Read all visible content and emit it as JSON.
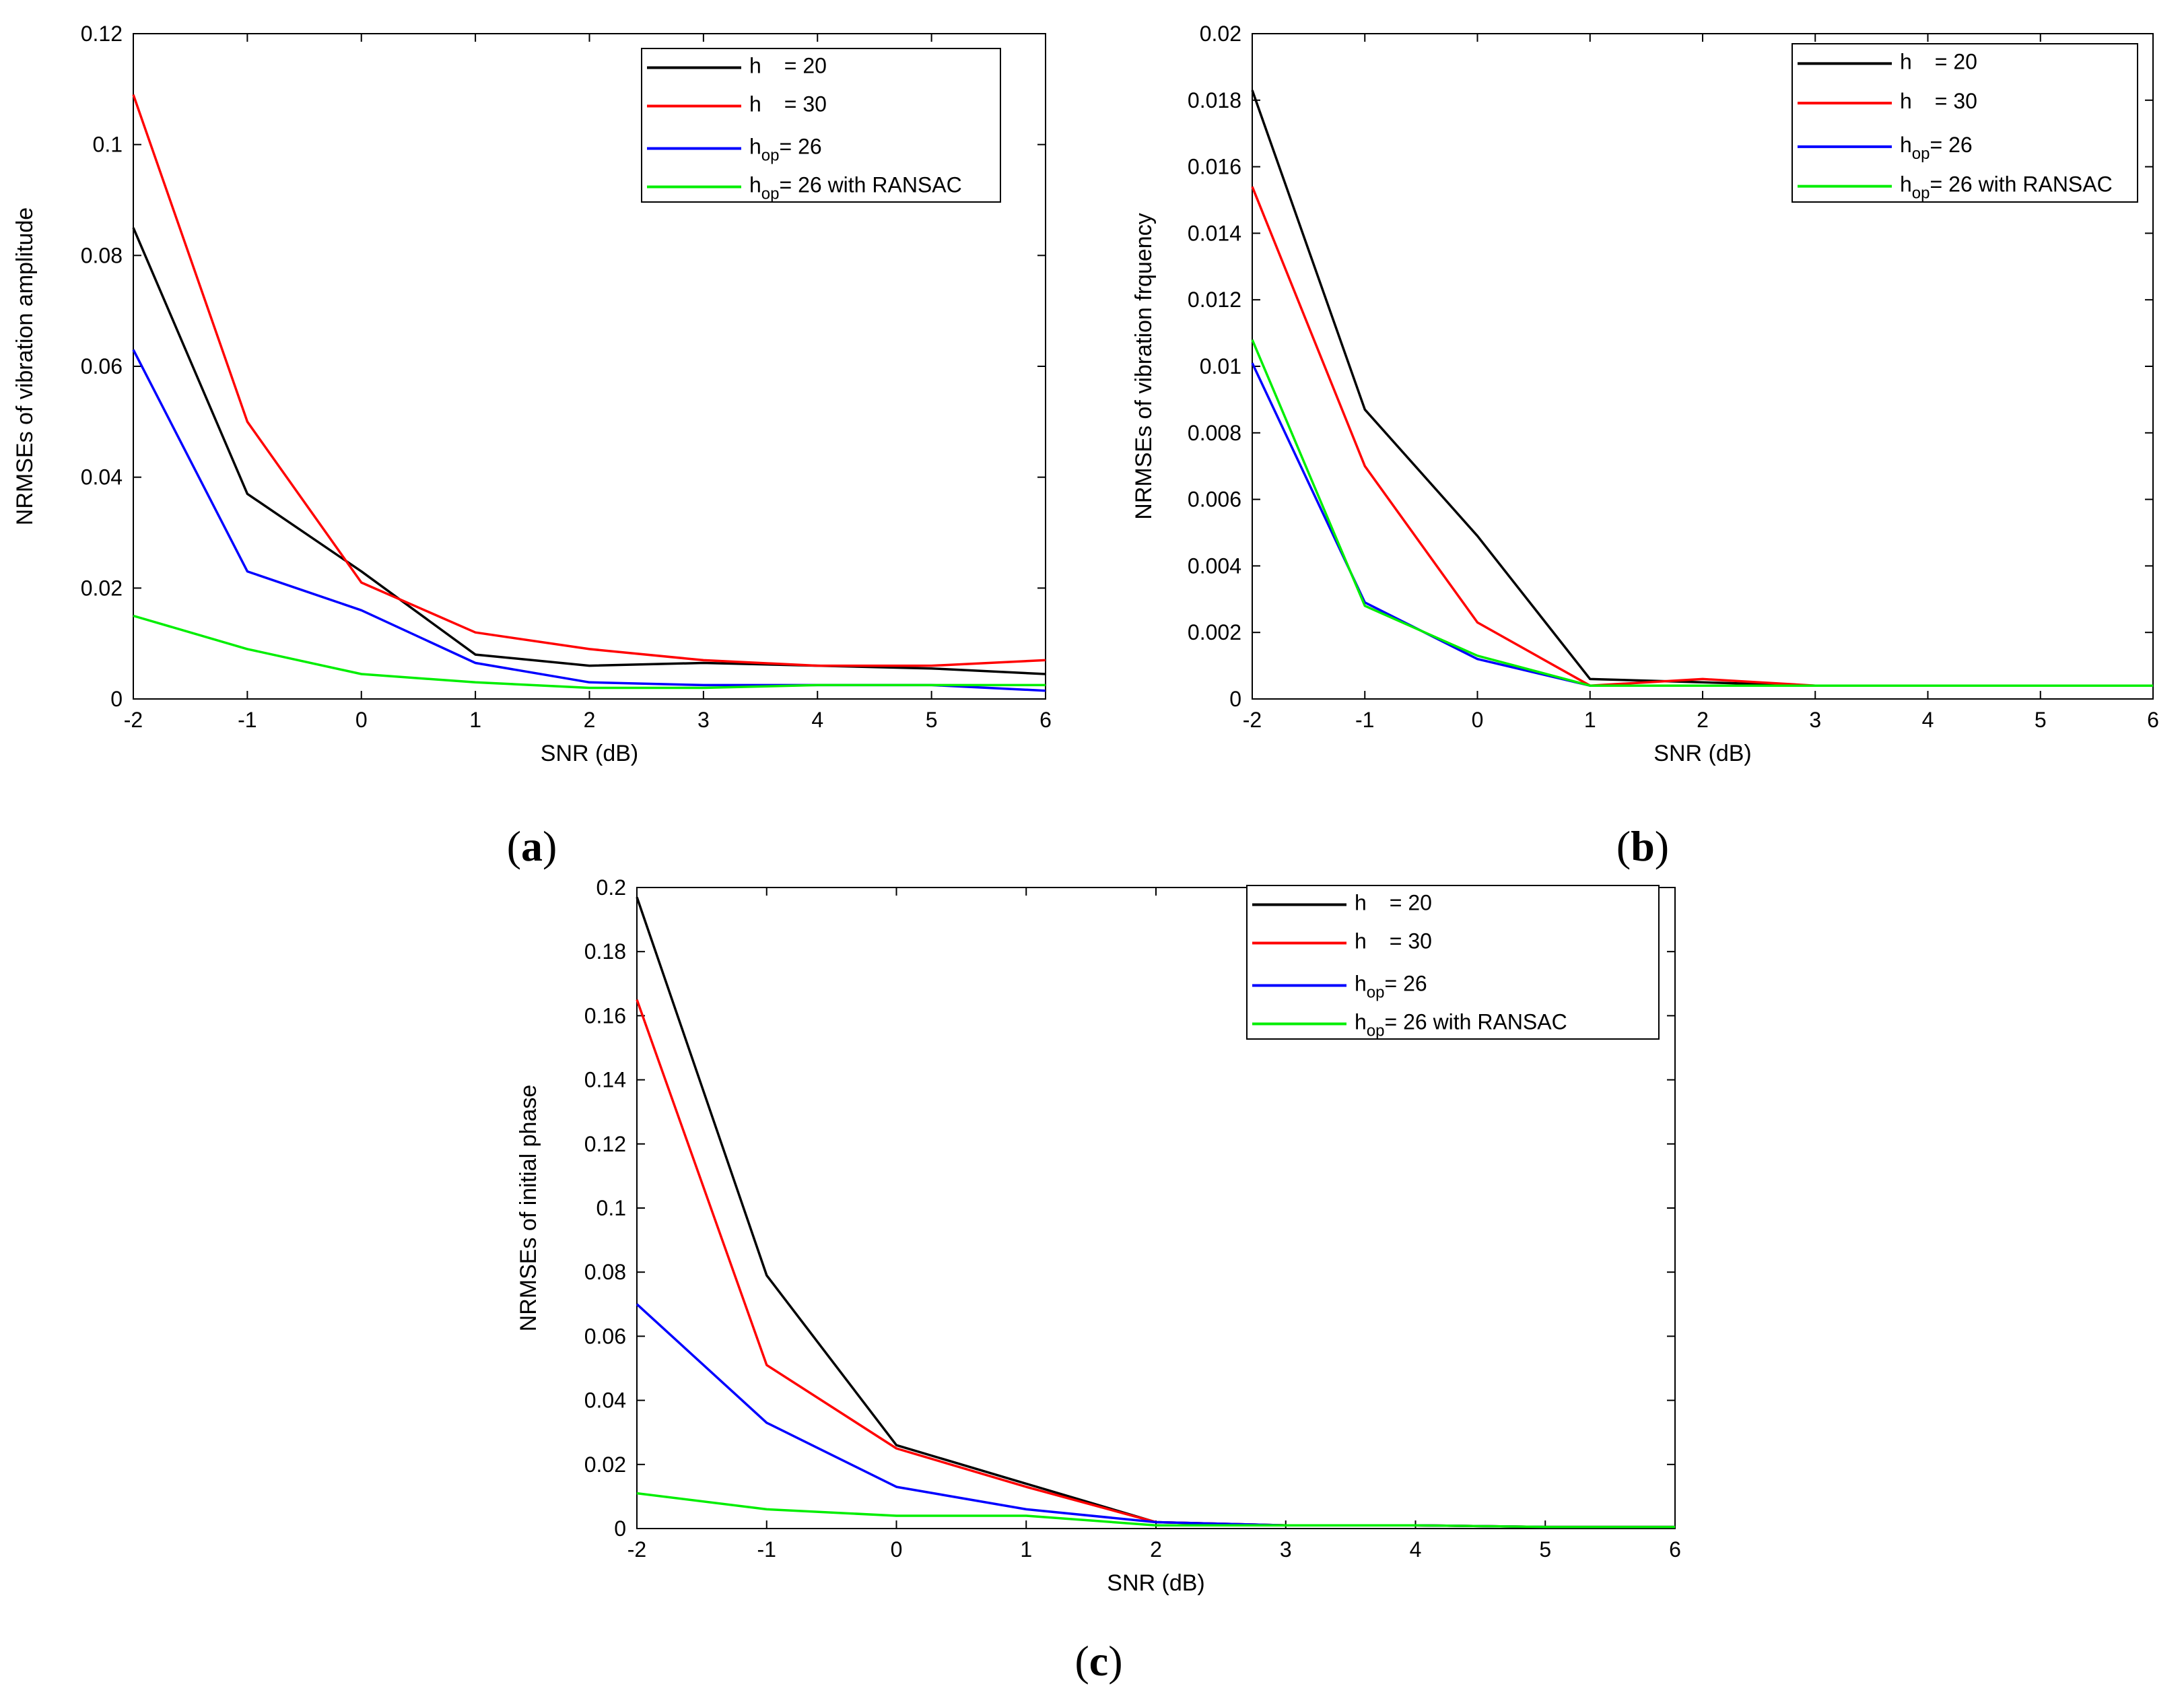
{
  "colors": {
    "h20": "#000000",
    "h30": "#ff0000",
    "hop": "#0000ff",
    "ransac": "#00ee00"
  },
  "chart_data": [
    {
      "type": "line",
      "caption": "a",
      "xlabel": "SNR (dB)",
      "ylabel": "NRMSEs of vibration amplitude",
      "xlim": [
        -2,
        6
      ],
      "ylim": [
        0,
        0.12
      ],
      "xticks": [
        -2,
        -1,
        0,
        1,
        2,
        3,
        4,
        5,
        6
      ],
      "yticks": [
        0,
        0.02,
        0.04,
        0.06,
        0.08,
        0.1,
        0.12
      ],
      "x": [
        -2,
        -1,
        0,
        1,
        2,
        3,
        4,
        5,
        6
      ],
      "series": [
        {
          "name": "h = 20",
          "base": "h",
          "sub": "",
          "rest": "= 20",
          "colorKey": "h20",
          "values": [
            0.085,
            0.037,
            0.023,
            0.008,
            0.006,
            0.0065,
            0.006,
            0.0055,
            0.0045
          ]
        },
        {
          "name": "h = 30",
          "base": "h",
          "sub": "",
          "rest": "= 30",
          "colorKey": "h30",
          "values": [
            0.109,
            0.05,
            0.021,
            0.012,
            0.009,
            0.007,
            0.006,
            0.006,
            0.007
          ]
        },
        {
          "name": "hop = 26",
          "base": "h",
          "sub": "op",
          "rest": "= 26",
          "colorKey": "hop",
          "values": [
            0.063,
            0.023,
            0.016,
            0.0065,
            0.003,
            0.0025,
            0.0025,
            0.0025,
            0.0015
          ]
        },
        {
          "name": "hop = 26 with RANSAC",
          "base": "h",
          "sub": "op",
          "rest": "= 26 with RANSAC",
          "colorKey": "ransac",
          "values": [
            0.015,
            0.009,
            0.0045,
            0.003,
            0.002,
            0.002,
            0.0025,
            0.0025,
            0.0025
          ]
        }
      ]
    },
    {
      "type": "line",
      "caption": "b",
      "xlabel": "SNR (dB)",
      "ylabel": "NRMSEs of vibration frquency",
      "xlim": [
        -2,
        6
      ],
      "ylim": [
        0,
        0.02
      ],
      "xticks": [
        -2,
        -1,
        0,
        1,
        2,
        3,
        4,
        5,
        6
      ],
      "yticks": [
        0,
        0.002,
        0.004,
        0.006,
        0.008,
        0.01,
        0.012,
        0.014,
        0.016,
        0.018,
        0.02
      ],
      "x": [
        -2,
        -1,
        0,
        1,
        2,
        3,
        4,
        5,
        6
      ],
      "series": [
        {
          "name": "h = 20",
          "base": "h",
          "sub": "",
          "rest": "= 20",
          "colorKey": "h20",
          "values": [
            0.0183,
            0.0087,
            0.0049,
            0.0006,
            0.0005,
            0.0004,
            0.0004,
            0.0004,
            0.0004
          ]
        },
        {
          "name": "h = 30",
          "base": "h",
          "sub": "",
          "rest": "= 30",
          "colorKey": "h30",
          "values": [
            0.0154,
            0.007,
            0.0023,
            0.0004,
            0.0006,
            0.0004,
            0.0004,
            0.0004,
            0.0004
          ]
        },
        {
          "name": "hop = 26",
          "base": "h",
          "sub": "op",
          "rest": "= 26",
          "colorKey": "hop",
          "values": [
            0.0101,
            0.0029,
            0.0012,
            0.0004,
            0.0004,
            0.0004,
            0.0004,
            0.0004,
            0.0004
          ]
        },
        {
          "name": "hop = 26 with RANSAC",
          "base": "h",
          "sub": "op",
          "rest": "= 26 with RANSAC",
          "colorKey": "ransac",
          "values": [
            0.0108,
            0.0028,
            0.0013,
            0.0004,
            0.0004,
            0.0004,
            0.0004,
            0.0004,
            0.0004
          ]
        }
      ]
    },
    {
      "type": "line",
      "caption": "c",
      "xlabel": "SNR (dB)",
      "ylabel": "NRMSEs of initial phase",
      "xlim": [
        -2,
        6
      ],
      "ylim": [
        0,
        0.2
      ],
      "xticks": [
        -2,
        -1,
        0,
        1,
        2,
        3,
        4,
        5,
        6
      ],
      "yticks": [
        0,
        0.02,
        0.04,
        0.06,
        0.08,
        0.1,
        0.12,
        0.14,
        0.16,
        0.18,
        0.2
      ],
      "x": [
        -2,
        -1,
        0,
        1,
        2,
        3,
        4,
        5,
        6
      ],
      "series": [
        {
          "name": "h = 20",
          "base": "h",
          "sub": "",
          "rest": "= 20",
          "colorKey": "h20",
          "values": [
            0.197,
            0.079,
            0.026,
            0.014,
            0.002,
            0.001,
            0.001,
            0.0005,
            0.0005
          ]
        },
        {
          "name": "h = 30",
          "base": "h",
          "sub": "",
          "rest": "= 30",
          "colorKey": "h30",
          "values": [
            0.165,
            0.051,
            0.025,
            0.013,
            0.002,
            0.001,
            0.001,
            0.0005,
            0.0005
          ]
        },
        {
          "name": "hop = 26",
          "base": "h",
          "sub": "op",
          "rest": "= 26",
          "colorKey": "hop",
          "values": [
            0.07,
            0.033,
            0.013,
            0.006,
            0.002,
            0.001,
            0.001,
            0.0005,
            0.0005
          ]
        },
        {
          "name": "hop = 26 with RANSAC",
          "base": "h",
          "sub": "op",
          "rest": "= 26 with RANSAC",
          "colorKey": "ransac",
          "values": [
            0.011,
            0.006,
            0.004,
            0.004,
            0.001,
            0.001,
            0.001,
            0.0005,
            0.0005
          ]
        }
      ]
    }
  ]
}
